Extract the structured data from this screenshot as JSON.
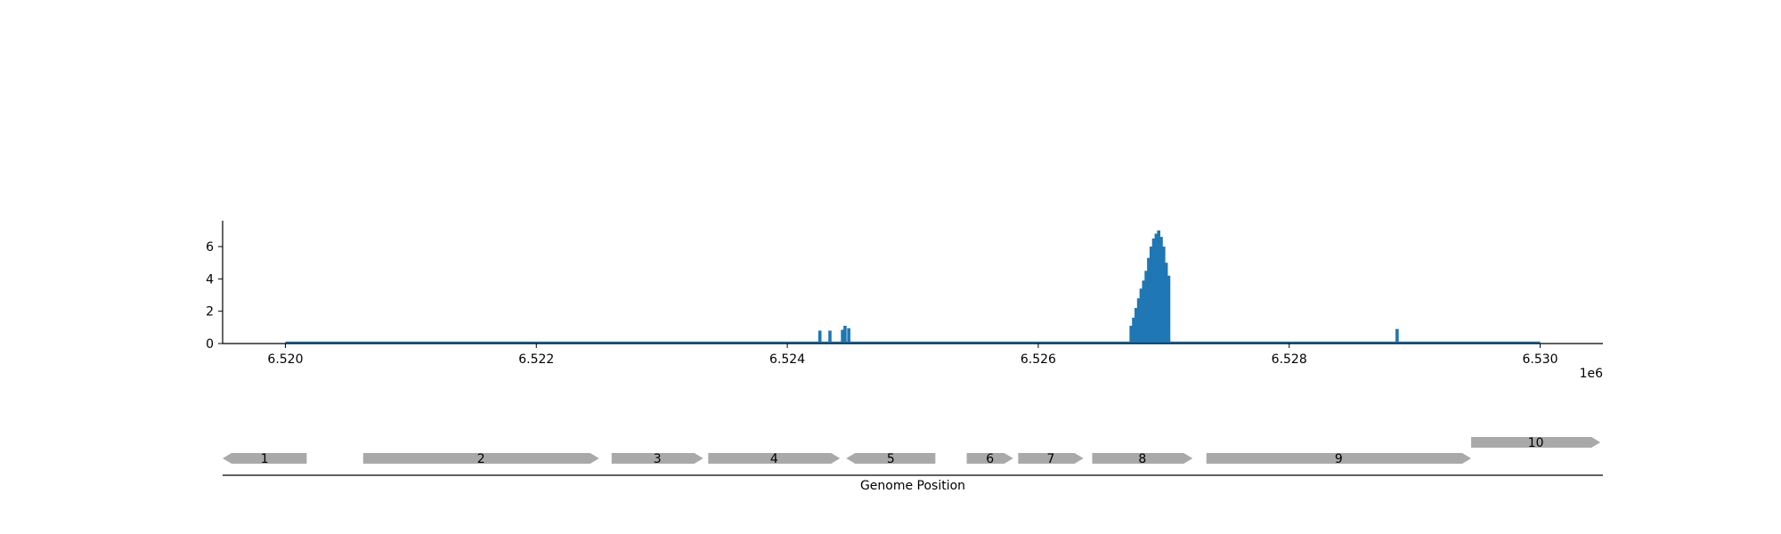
{
  "chart_data": {
    "type": "bar",
    "title": "",
    "xlabel": "Genome Position",
    "ylabel": "",
    "x_offset_label": "1e6",
    "xlim": [
      6519500,
      6530500
    ],
    "ylim": [
      0,
      7.6
    ],
    "x_ticks": [
      6520000,
      6522000,
      6524000,
      6526000,
      6528000,
      6530000
    ],
    "x_tick_labels": [
      "6.520",
      "6.522",
      "6.524",
      "6.526",
      "6.528",
      "6.530"
    ],
    "y_ticks": [
      0,
      2,
      4,
      6
    ],
    "y_tick_labels": [
      "0",
      "2",
      "4",
      "6"
    ],
    "baseline_range": [
      6520000,
      6530000
    ],
    "series": [
      {
        "color": "#1f77b4",
        "points": [
          [
            6524260,
            0.8
          ],
          [
            6524340,
            0.8
          ],
          [
            6524440,
            0.85
          ],
          [
            6524460,
            1.1
          ],
          [
            6524490,
            0.95
          ],
          [
            6526740,
            1.1
          ],
          [
            6526760,
            1.6
          ],
          [
            6526780,
            2.2
          ],
          [
            6526800,
            2.8
          ],
          [
            6526820,
            3.4
          ],
          [
            6526840,
            3.9
          ],
          [
            6526860,
            4.5
          ],
          [
            6526880,
            5.3
          ],
          [
            6526900,
            6.0
          ],
          [
            6526920,
            6.5
          ],
          [
            6526940,
            6.8
          ],
          [
            6526960,
            7.0
          ],
          [
            6526980,
            6.6
          ],
          [
            6527000,
            6.0
          ],
          [
            6527020,
            5.0
          ],
          [
            6527040,
            4.2
          ],
          [
            6528860,
            0.9
          ]
        ]
      }
    ],
    "genes": [
      {
        "label": "1",
        "start": 6519500,
        "end": 6520170,
        "strand": "-",
        "row": 0
      },
      {
        "label": "2",
        "start": 6520620,
        "end": 6522500,
        "strand": "+",
        "row": 0
      },
      {
        "label": "3",
        "start": 6522600,
        "end": 6523330,
        "strand": "+",
        "row": 0
      },
      {
        "label": "4",
        "start": 6523370,
        "end": 6524420,
        "strand": "+",
        "row": 0
      },
      {
        "label": "5",
        "start": 6524470,
        "end": 6525180,
        "strand": "-",
        "row": 0
      },
      {
        "label": "6",
        "start": 6525430,
        "end": 6525800,
        "strand": "+",
        "row": 0
      },
      {
        "label": "7",
        "start": 6525840,
        "end": 6526360,
        "strand": "+",
        "row": 0
      },
      {
        "label": "8",
        "start": 6526430,
        "end": 6527230,
        "strand": "+",
        "row": 0
      },
      {
        "label": "9",
        "start": 6527340,
        "end": 6529450,
        "strand": "+",
        "row": 0
      },
      {
        "label": "10",
        "start": 6529450,
        "end": 6530480,
        "strand": "+",
        "row": 1
      }
    ],
    "colors": {
      "bars": "#1f77b4",
      "genes": "#a9a9a9",
      "axes": "#000000"
    }
  }
}
